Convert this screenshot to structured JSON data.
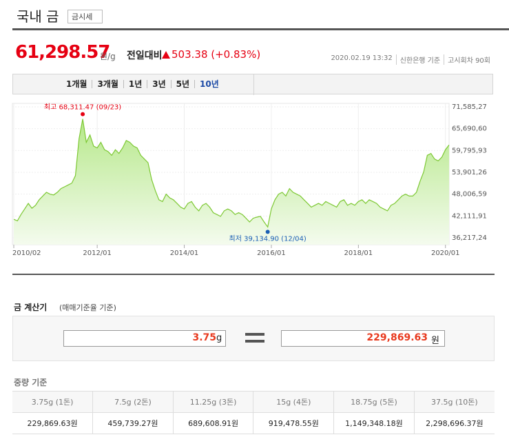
{
  "header": {
    "title": "국내 금",
    "button": "금시세"
  },
  "quote": {
    "price": "61,298.57",
    "unit": "원/g",
    "change_label": "전일대비",
    "change": "503.38 (+0.83%)",
    "meta": [
      "2020.02.19 13:32",
      "신한은행 기준",
      "고시회차 90회"
    ]
  },
  "tabs": {
    "items": [
      "1개월",
      "3개월",
      "1년",
      "3년",
      "5년",
      "10년"
    ],
    "active": 5
  },
  "chart_data": {
    "type": "line",
    "categories": [
      "2010/02",
      null,
      null,
      null,
      null,
      null,
      null,
      null,
      null,
      null,
      null,
      null,
      null,
      null,
      null,
      null,
      null,
      null,
      null,
      null,
      null,
      null,
      null,
      "2012/01",
      null,
      null,
      null,
      null,
      null,
      null,
      null,
      null,
      null,
      null,
      null,
      null,
      null,
      null,
      null,
      null,
      null,
      null,
      null,
      null,
      null,
      null,
      null,
      "2014/01",
      null,
      null,
      null,
      null,
      null,
      null,
      null,
      null,
      null,
      null,
      null,
      null,
      null,
      null,
      null,
      null,
      null,
      null,
      null,
      null,
      null,
      null,
      null,
      "2016/01",
      null,
      null,
      null,
      null,
      null,
      null,
      null,
      null,
      null,
      null,
      null,
      null,
      null,
      null,
      null,
      null,
      null,
      null,
      null,
      null,
      null,
      null,
      null,
      "2018/01",
      null,
      null,
      null,
      null,
      null,
      null,
      null,
      null,
      null,
      null,
      null,
      null,
      null,
      null,
      null,
      null,
      null,
      null,
      null,
      null,
      null,
      null,
      null,
      "2020/01",
      null
    ],
    "series": [
      {
        "color": "#7cc832",
        "values": [
          41200,
          40800,
          42500,
          44000,
          45500,
          44200,
          45000,
          46500,
          47500,
          48500,
          48000,
          47800,
          48500,
          49500,
          50000,
          50500,
          51000,
          53000,
          63000,
          68311.47,
          62000,
          64000,
          61000,
          60500,
          62000,
          60000,
          59500,
          58500,
          60000,
          59000,
          60500,
          62500,
          62000,
          61000,
          60500,
          58500,
          57500,
          56500,
          52000,
          49000,
          46500,
          46000,
          48000,
          47000,
          46500,
          45500,
          44500,
          44000,
          45500,
          46000,
          44500,
          43500,
          45000,
          45500,
          44500,
          43000,
          42500,
          42000,
          43500,
          44000,
          43500,
          42500,
          43000,
          42500,
          41500,
          40500,
          41500,
          41800,
          42000,
          40500,
          39134.9,
          44000,
          46500,
          48000,
          48500,
          47500,
          49500,
          48500,
          48000,
          47500,
          46500,
          45500,
          44500,
          45000,
          45500,
          45000,
          46000,
          45500,
          45000,
          44500,
          46000,
          46500,
          45000,
          45500,
          45000,
          46000,
          46500,
          45500,
          46500,
          46000,
          45500,
          44500,
          44000,
          43500,
          45000,
          45500,
          46500,
          47500,
          48000,
          47500,
          47500,
          48500,
          51500,
          54000,
          58500,
          59000,
          57500,
          57000,
          58000,
          60000,
          61298.57
        ]
      }
    ],
    "ylim": [
      36217.24,
      71585.27
    ],
    "yticks": [
      {
        "value": 36217.24,
        "label": "36,217,24"
      },
      {
        "value": 42111.91,
        "label": "42,111,91"
      },
      {
        "value": 48006.59,
        "label": "48,006,59"
      },
      {
        "value": 53901.26,
        "label": "53,901,26"
      },
      {
        "value": 59795.93,
        "label": "59,795,93"
      },
      {
        "value": 65690.6,
        "label": "65,690,60"
      },
      {
        "value": 71585.27,
        "label": "71,585,27"
      }
    ],
    "grid": true,
    "annotations": [
      {
        "label": "최고 68,311.47 (09/23)",
        "value": 68311.47,
        "color": "#e60012"
      },
      {
        "label": "최저 39,134.90 (12/04)",
        "value": 39134.9,
        "color": "#1a5fb4"
      }
    ]
  },
  "calculator": {
    "title": "금 계산기",
    "subtitle": "(매매기준율 기준)",
    "input": "3.75",
    "input_unit": "g",
    "result": "229,869.63",
    "result_unit": "원"
  },
  "weights": {
    "title": "중량 기준",
    "headers": [
      "3.75g (1돈)",
      "7.5g (2돈)",
      "11.25g (3돈)",
      "15g (4돈)",
      "18.75g (5돈)",
      "37.5g (10돈)"
    ],
    "rows": [
      [
        "229,869.63원",
        "459,739.27원",
        "689,608.91원",
        "919,478.55원",
        "1,149,348.18원",
        "2,298,696.37원"
      ]
    ]
  }
}
